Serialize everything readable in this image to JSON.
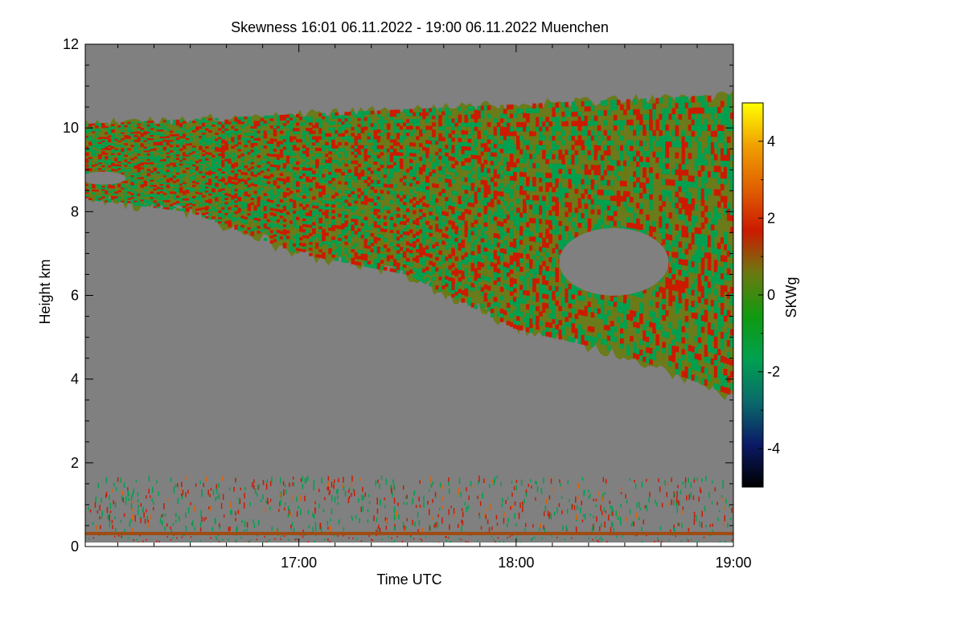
{
  "chart_data": {
    "type": "heatmap",
    "title": "Skewness   16:01 06.11.2022 - 19:00 06.11.2022 Muenchen",
    "xlabel": "Time UTC",
    "ylabel": "Height km",
    "x_start_hours": 16.0167,
    "x_end_hours": 19.0,
    "x_tick_labels": [
      "17:00",
      "18:00",
      "19:00"
    ],
    "x_tick_values_hours": [
      17,
      18,
      19
    ],
    "ylim": [
      0,
      12
    ],
    "y_ticks": [
      "0",
      "2",
      "4",
      "6",
      "8",
      "10",
      "12"
    ],
    "y_tick_values": [
      0,
      2,
      4,
      6,
      8,
      10,
      12
    ],
    "colorbar": {
      "label": "SKWg",
      "range": [
        -5,
        5
      ],
      "ticks": [
        "-4",
        "-2",
        "0",
        "2",
        "4"
      ],
      "tick_values": [
        -4,
        -2,
        0,
        2,
        4
      ],
      "colors": [
        "#000000",
        "#0a1a66",
        "#0a6a6a",
        "#00a050",
        "#109a10",
        "#6a7a10",
        "#cc1a00",
        "#e06000",
        "#f0a000",
        "#ffff00"
      ]
    },
    "no_data_color": "#808080",
    "cloud_layer": {
      "description_values_km": {
        "top_at_start": 10.1,
        "top_at_end": 10.8,
        "base_at_start": 8.3,
        "base_at_17_30": 6.5,
        "base_at_18_30": 4.6,
        "base_at_end": 3.6
      }
    },
    "boundary_layer_top_km": 1.7,
    "surface_band_km": 0.3
  }
}
